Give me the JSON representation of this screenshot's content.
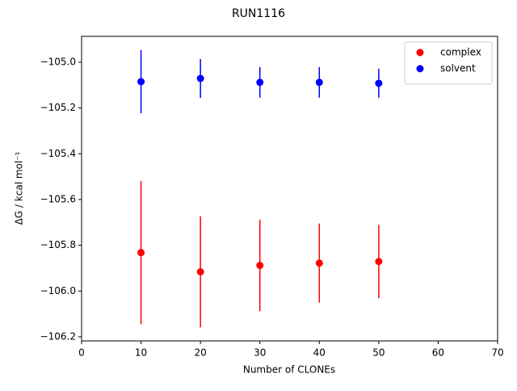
{
  "chart_data": {
    "type": "scatter",
    "title": "RUN1116",
    "x_label": "Number of CLONEs",
    "y_label": "ΔG / kcal mol⁻¹",
    "x": [
      10,
      20,
      30,
      40,
      50
    ],
    "series": [
      {
        "name": "complex",
        "color": "#ff0000",
        "values": [
          -105.832,
          -105.916,
          -105.888,
          -105.878,
          -105.871
        ],
        "errors": [
          0.313,
          0.243,
          0.2,
          0.173,
          0.16
        ]
      },
      {
        "name": "solvent",
        "color": "#0000ff",
        "values": [
          -105.085,
          -105.071,
          -105.088,
          -105.088,
          -105.092
        ],
        "errors": [
          0.138,
          0.085,
          0.067,
          0.067,
          0.063
        ]
      }
    ],
    "xlim": [
      0,
      70
    ],
    "xticks": [
      0,
      10,
      20,
      30,
      40,
      50,
      60,
      70
    ],
    "ylim": [
      -106.218,
      -104.887
    ],
    "yticks": [
      {
        "value": -106.2,
        "label": "−106.2"
      },
      {
        "value": -106.0,
        "label": "−106.0"
      },
      {
        "value": -105.8,
        "label": "−105.8"
      },
      {
        "value": -105.6,
        "label": "−105.6"
      },
      {
        "value": -105.4,
        "label": "−105.4"
      },
      {
        "value": -105.2,
        "label": "−105.2"
      },
      {
        "value": -105.0,
        "label": "−105.0"
      }
    ],
    "legend": "upper right",
    "grid": false
  }
}
